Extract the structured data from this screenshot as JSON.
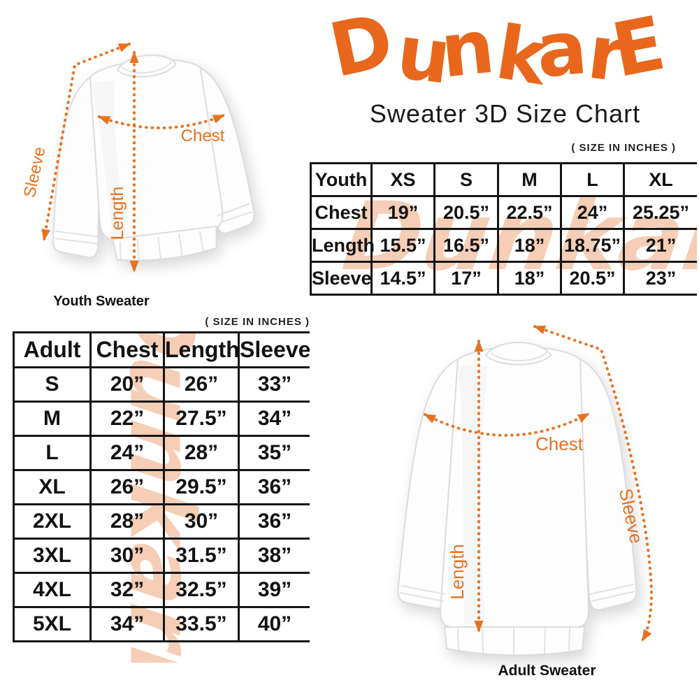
{
  "brand": {
    "logo_text": "DunkarE",
    "watermark_text": "DunkarE"
  },
  "header": {
    "subtitle": "Sweater 3D Size Chart",
    "size_note": "( SIZE IN INCHES )"
  },
  "measure_labels": {
    "chest": "Chest",
    "length": "Length",
    "sleeve": "Sleeve"
  },
  "youth_diagram": {
    "caption": "Youth Sweater"
  },
  "adult_diagram": {
    "caption": "Adult Sweater"
  },
  "youth_table": {
    "header": [
      "Youth",
      "XS",
      "S",
      "M",
      "L",
      "XL"
    ],
    "rows": [
      [
        "Chest",
        "19”",
        "20.5”",
        "22.5”",
        "24”",
        "25.25”"
      ],
      [
        "Length",
        "15.5”",
        "16.5”",
        "18”",
        "18.75”",
        "21”"
      ],
      [
        "Sleeve",
        "14.5”",
        "17”",
        "18”",
        "20.5”",
        "23”"
      ]
    ]
  },
  "adult_table": {
    "header": [
      "Adult",
      "Chest",
      "Length",
      "Sleeve"
    ],
    "rows": [
      [
        "S",
        "20”",
        "26”",
        "33”"
      ],
      [
        "M",
        "22”",
        "27.5”",
        "34”"
      ],
      [
        "L",
        "24”",
        "28”",
        "35”"
      ],
      [
        "XL",
        "26”",
        "29.5”",
        "36”"
      ],
      [
        "2XL",
        "28”",
        "30”",
        "36”"
      ],
      [
        "3XL",
        "30”",
        "31.5”",
        "38”"
      ],
      [
        "4XL",
        "32”",
        "32.5”",
        "39”"
      ],
      [
        "5XL",
        "34”",
        "33.5”",
        "40”"
      ]
    ]
  },
  "colors": {
    "accent_orange": "#e8671c",
    "arrow_orange": "#e8711e",
    "watermark_peach": "#f5c6a9",
    "table_border": "#151515"
  }
}
